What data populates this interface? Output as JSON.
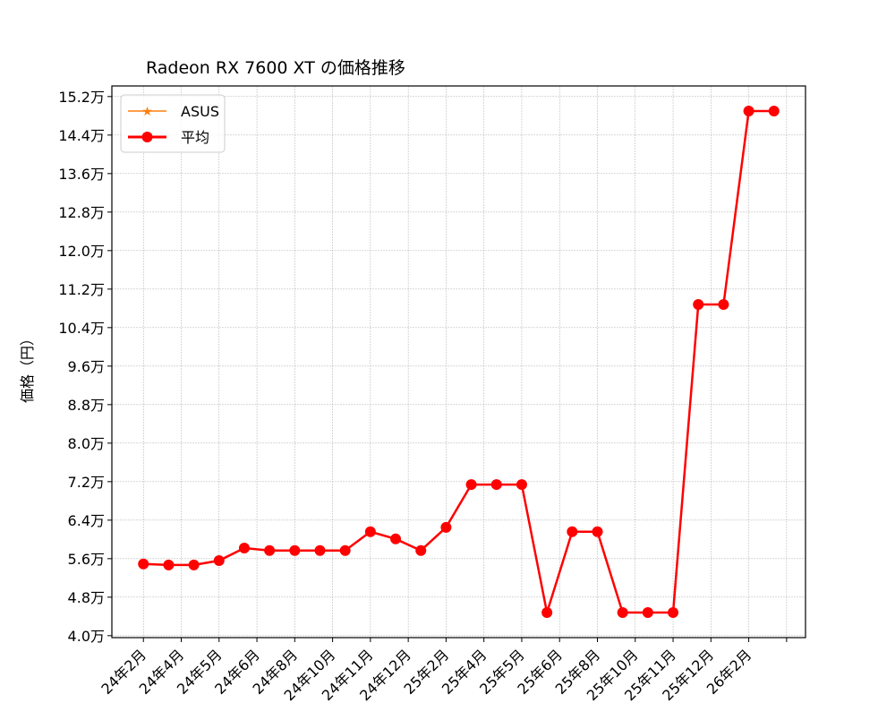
{
  "chart_data": {
    "type": "line",
    "title": "Radeon RX 7600 XT の価格推移",
    "xlabel": "",
    "ylabel": "価格（円）",
    "ylim": [
      3.96,
      15.42
    ],
    "xlim": [
      -1.25,
      26.25
    ],
    "grid": true,
    "legend_placement": "top-left",
    "y_ticks": [
      4.0,
      4.8,
      5.6,
      6.4,
      7.2,
      8.0,
      8.8,
      9.6,
      10.4,
      11.2,
      12.0,
      12.8,
      13.6,
      14.4,
      15.2
    ],
    "y_tick_labels": [
      "4.0万",
      "4.8万",
      "5.6万",
      "6.4万",
      "7.2万",
      "8.0万",
      "8.8万",
      "9.6万",
      "10.4万",
      "11.2万",
      "12.0万",
      "12.8万",
      "13.6万",
      "14.4万",
      "15.2万"
    ],
    "x_ticks": [
      0,
      1.5,
      3,
      4.5,
      6,
      7.5,
      9,
      10.5,
      12,
      13.5,
      15,
      16.5,
      18,
      19.5,
      21,
      22.5,
      24,
      25.5
    ],
    "x_tick_labels": [
      "24年2月",
      "24年4月",
      "24年5月",
      "24年6月",
      "24年8月",
      "24年10月",
      "24年11月",
      "24年12月",
      "25年2月",
      "25年4月",
      "25年5月",
      "25年6月",
      "25年8月",
      "25年10月",
      "25年11月",
      "25年12月",
      "26年2月",
      ""
    ],
    "series": [
      {
        "name": "ASUS",
        "color": "#ff7f0e",
        "marker": "star",
        "values": []
      },
      {
        "name": "平均",
        "color": "#ff0000",
        "marker": "circle",
        "x": [
          0,
          1,
          2,
          3,
          4,
          5,
          6,
          7,
          8,
          9,
          10,
          11,
          12,
          13,
          14,
          15,
          16,
          17,
          18,
          19,
          20,
          21,
          22,
          23,
          24,
          25
        ],
        "values": [
          5.49,
          5.47,
          5.47,
          5.56,
          5.82,
          5.77,
          5.77,
          5.77,
          5.77,
          6.16,
          6.01,
          5.77,
          6.25,
          7.14,
          7.14,
          7.14,
          4.48,
          6.16,
          6.16,
          4.48,
          4.48,
          4.48,
          10.88,
          10.88,
          14.9,
          14.9
        ]
      }
    ]
  }
}
